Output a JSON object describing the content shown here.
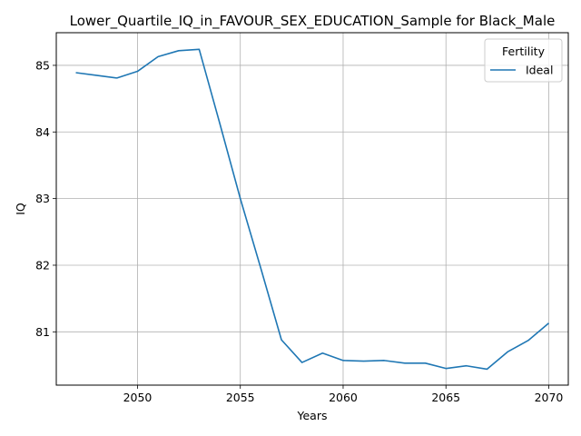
{
  "chart_data": {
    "type": "line",
    "title": "Lower_Quartile_IQ_in_FAVOUR_SEX_EDUCATION_Sample for Black_Male",
    "xlabel": "Years",
    "ylabel": "IQ",
    "xlim": [
      2046.05,
      2070.95
    ],
    "ylim": [
      80.2,
      85.49
    ],
    "xticks": [
      2050,
      2055,
      2060,
      2065,
      2070
    ],
    "yticks": [
      81,
      82,
      83,
      84,
      85
    ],
    "grid": true,
    "legend": {
      "title": "Fertility",
      "placement": "top-right"
    },
    "series": [
      {
        "name": "Ideal",
        "color": "#1f77b4",
        "x": [
          2047,
          2048,
          2049,
          2050,
          2051,
          2052,
          2053,
          2054,
          2055,
          2056,
          2057,
          2058,
          2059,
          2060,
          2061,
          2062,
          2063,
          2064,
          2065,
          2066,
          2067,
          2068,
          2069,
          2070
        ],
        "y": [
          84.89,
          84.85,
          84.81,
          84.91,
          85.13,
          85.22,
          85.24,
          84.13,
          83.0,
          81.95,
          80.88,
          80.54,
          80.68,
          80.57,
          80.56,
          80.57,
          80.53,
          80.53,
          80.45,
          80.49,
          80.44,
          80.7,
          80.87,
          81.13
        ]
      }
    ]
  }
}
